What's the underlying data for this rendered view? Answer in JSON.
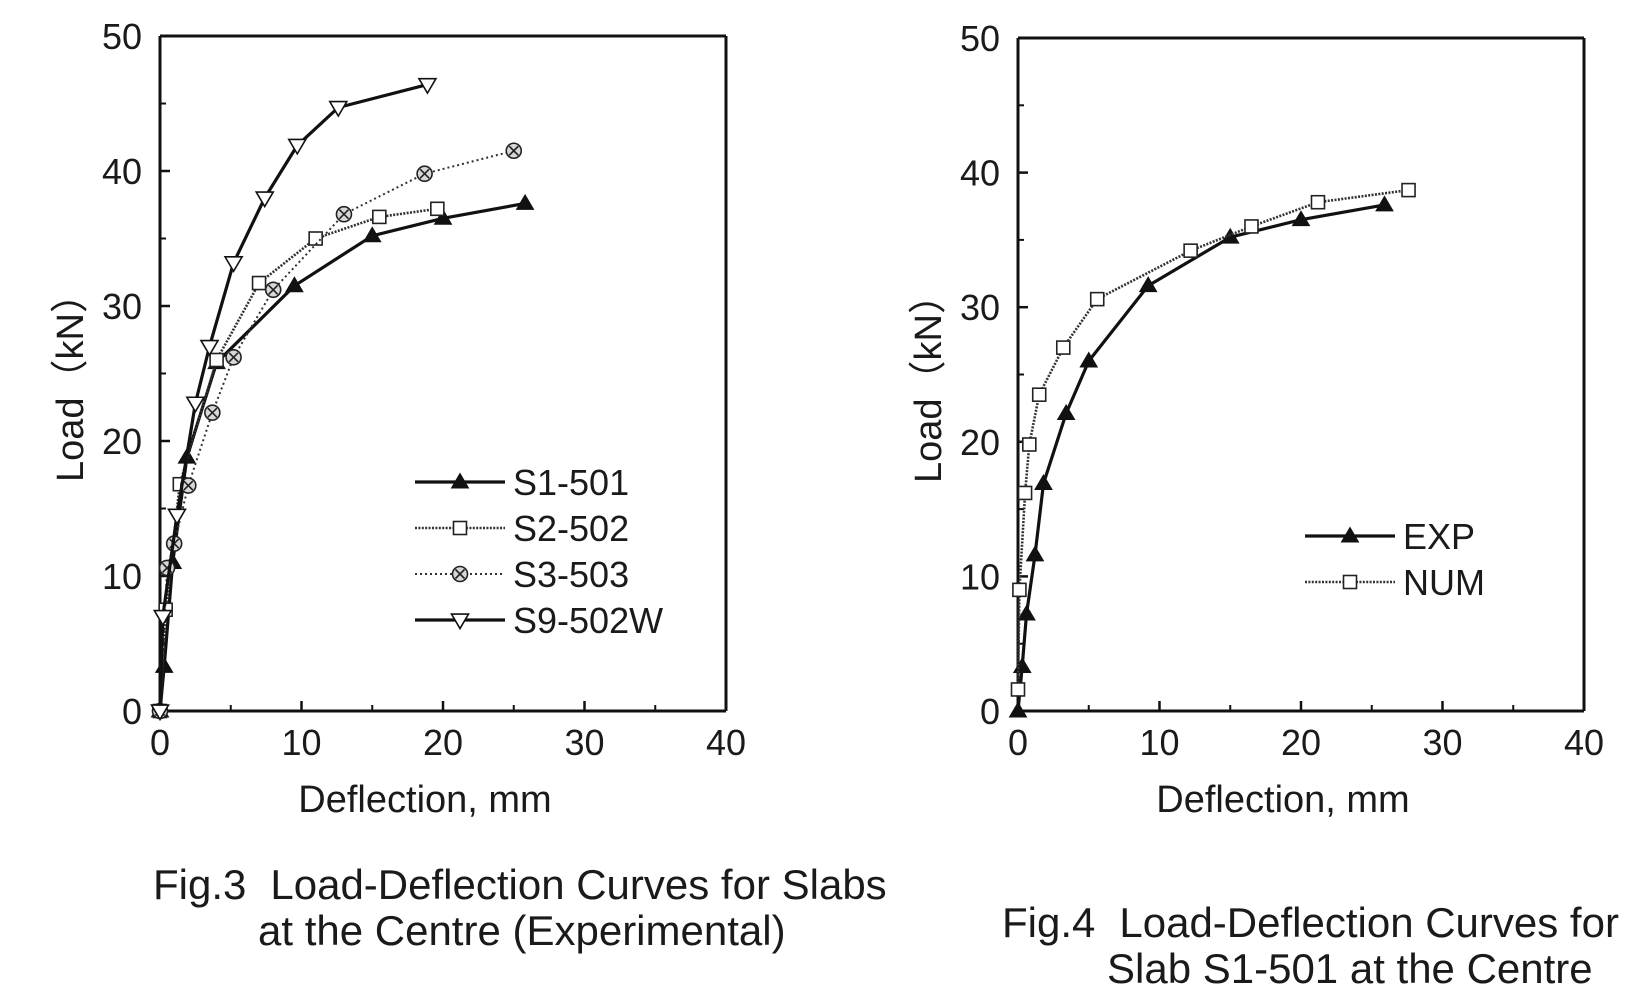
{
  "chart_data": [
    {
      "type": "line",
      "xlabel": "Deflection, mm",
      "ylabel": "Load（kN）",
      "xlim": [
        0,
        40
      ],
      "ylim": [
        0,
        50
      ],
      "xticks": [
        "0",
        "10",
        "20",
        "30",
        "40"
      ],
      "yticks": [
        "0",
        "10",
        "20",
        "30",
        "40",
        "50"
      ],
      "grid": false,
      "legend_position": "lower-right",
      "caption": {
        "label": "Fig.3",
        "line1": "Load-Deflection Curves for Slabs",
        "line2": "at the Centre (Experimental)"
      },
      "series": [
        {
          "name": "S1-501",
          "marker": "triangle-filled",
          "line": "solid",
          "points": [
            [
              0,
              0
            ],
            [
              0.3,
              3.3
            ],
            [
              0.9,
              11
            ],
            [
              1.9,
              18.8
            ],
            [
              4,
              25.8
            ],
            [
              9.5,
              31.5
            ],
            [
              15,
              35.2
            ],
            [
              20,
              36.5
            ],
            [
              25.8,
              37.6
            ]
          ]
        },
        {
          "name": "S2-502",
          "marker": "square-open",
          "line": "dotted-dense",
          "points": [
            [
              0,
              0
            ],
            [
              0.4,
              7.5
            ],
            [
              1.4,
              16.8
            ],
            [
              4,
              26
            ],
            [
              7,
              31.7
            ],
            [
              11,
              35
            ],
            [
              15.5,
              36.6
            ],
            [
              19.6,
              37.2
            ]
          ]
        },
        {
          "name": "S3-503",
          "marker": "circle-hatched",
          "line": "dotted",
          "points": [
            [
              0,
              0
            ],
            [
              0.5,
              10.6
            ],
            [
              1,
              12.4
            ],
            [
              2,
              16.7
            ],
            [
              3.7,
              22.1
            ],
            [
              5.2,
              26.2
            ],
            [
              8,
              31.2
            ],
            [
              13,
              36.8
            ],
            [
              18.7,
              39.8
            ],
            [
              25,
              41.5
            ]
          ]
        },
        {
          "name": "S9-502W",
          "marker": "triangle-down-open",
          "line": "solid",
          "points": [
            [
              0,
              0
            ],
            [
              0.2,
              7
            ],
            [
              1.2,
              14.5
            ],
            [
              2.5,
              22.8
            ],
            [
              3.5,
              27
            ],
            [
              5.2,
              33.2
            ],
            [
              7.4,
              38
            ],
            [
              9.7,
              41.9
            ],
            [
              12.6,
              44.7
            ],
            [
              18.9,
              46.4
            ]
          ]
        }
      ]
    },
    {
      "type": "line",
      "xlabel": "Deflection, mm",
      "ylabel": "Load（kN）",
      "xlim": [
        0,
        40
      ],
      "ylim": [
        0,
        50
      ],
      "xticks": [
        "0",
        "10",
        "20",
        "30",
        "40"
      ],
      "yticks": [
        "0",
        "10",
        "20",
        "30",
        "40",
        "50"
      ],
      "grid": false,
      "legend_position": "lower-right",
      "caption": {
        "label": "Fig.4",
        "line1": "Load-Deflection Curves for",
        "line2": "Slab S1-501 at the Centre"
      },
      "series": [
        {
          "name": "EXP",
          "marker": "triangle-filled",
          "line": "solid",
          "points": [
            [
              0,
              0
            ],
            [
              0.3,
              3.3
            ],
            [
              0.6,
              7.2
            ],
            [
              1.2,
              11.6
            ],
            [
              1.8,
              16.9
            ],
            [
              3.4,
              22.1
            ],
            [
              5,
              26
            ],
            [
              9.2,
              31.6
            ],
            [
              15,
              35.2
            ],
            [
              20,
              36.5
            ],
            [
              25.9,
              37.6
            ]
          ]
        },
        {
          "name": "NUM",
          "marker": "square-open",
          "line": "dotted-dense",
          "points": [
            [
              0,
              1.6
            ],
            [
              0.1,
              9
            ],
            [
              0.5,
              16.2
            ],
            [
              0.8,
              19.8
            ],
            [
              1.5,
              23.5
            ],
            [
              3.2,
              27
            ],
            [
              5.6,
              30.6
            ],
            [
              12.2,
              34.2
            ],
            [
              16.5,
              36
            ],
            [
              21.2,
              37.8
            ],
            [
              27.6,
              38.7
            ]
          ]
        }
      ]
    }
  ]
}
